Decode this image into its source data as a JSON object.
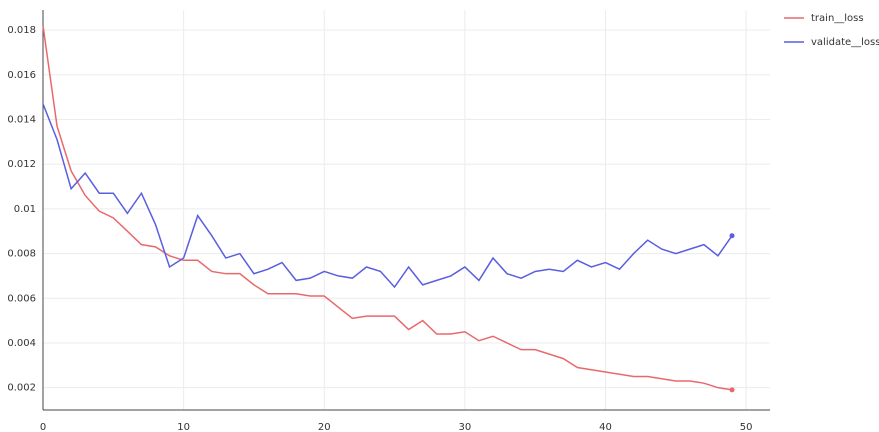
{
  "chart_data": {
    "type": "line",
    "x": [
      0,
      1,
      2,
      3,
      4,
      5,
      6,
      7,
      8,
      9,
      10,
      11,
      12,
      13,
      14,
      15,
      16,
      17,
      18,
      19,
      20,
      21,
      22,
      23,
      24,
      25,
      26,
      27,
      28,
      29,
      30,
      31,
      32,
      33,
      34,
      35,
      36,
      37,
      38,
      39,
      40,
      41,
      42,
      43,
      44,
      45,
      46,
      47,
      48,
      49
    ],
    "series": [
      {
        "name": "train__loss",
        "color": "#e8696b",
        "values": [
          0.0182,
          0.0137,
          0.0117,
          0.0106,
          0.0099,
          0.0096,
          0.009,
          0.0084,
          0.0083,
          0.0079,
          0.0077,
          0.0077,
          0.0072,
          0.0071,
          0.0071,
          0.0066,
          0.0062,
          0.0062,
          0.0062,
          0.0061,
          0.0061,
          0.0056,
          0.0051,
          0.0052,
          0.0052,
          0.0052,
          0.0046,
          0.005,
          0.0044,
          0.0044,
          0.0045,
          0.0041,
          0.0043,
          0.004,
          0.0037,
          0.0037,
          0.0035,
          0.0033,
          0.0029,
          0.0028,
          0.0027,
          0.0026,
          0.0025,
          0.0025,
          0.0024,
          0.0023,
          0.0023,
          0.0022,
          0.002,
          0.0019
        ]
      },
      {
        "name": "validate__loss",
        "color": "#5a5ee0",
        "values": [
          0.0147,
          0.0131,
          0.0109,
          0.0116,
          0.0107,
          0.0107,
          0.0098,
          0.0107,
          0.0093,
          0.0074,
          0.0078,
          0.0097,
          0.0088,
          0.0078,
          0.008,
          0.0071,
          0.0073,
          0.0076,
          0.0068,
          0.0069,
          0.0072,
          0.007,
          0.0069,
          0.0074,
          0.0072,
          0.0065,
          0.0074,
          0.0066,
          0.0068,
          0.007,
          0.0074,
          0.0068,
          0.0078,
          0.0071,
          0.0069,
          0.0072,
          0.0073,
          0.0072,
          0.0077,
          0.0074,
          0.0076,
          0.0073,
          0.008,
          0.0086,
          0.0082,
          0.008,
          0.0082,
          0.0084,
          0.0079,
          0.0088
        ]
      }
    ],
    "xlim": [
      0,
      51.7
    ],
    "xticks": [
      0,
      10,
      20,
      30,
      40,
      50
    ],
    "ylim": [
      0.001,
      0.0189
    ],
    "yticks": [
      0.002,
      0.004,
      0.006,
      0.008,
      0.01,
      0.012,
      0.014,
      0.016,
      0.018
    ],
    "grid": true,
    "legend": "top-right"
  }
}
